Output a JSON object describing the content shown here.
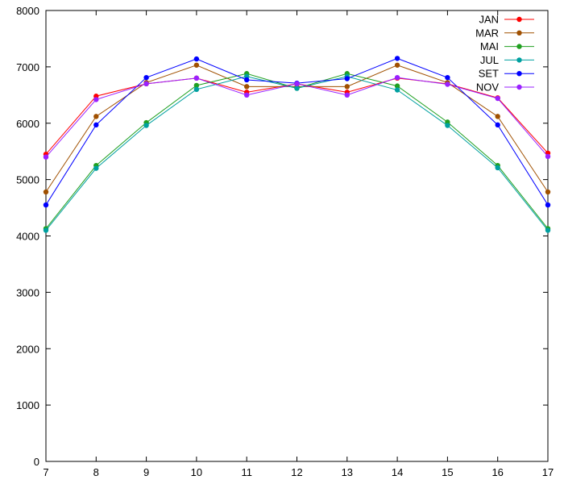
{
  "chart_data": {
    "type": "line",
    "title": "",
    "xlabel": "",
    "ylabel": "",
    "x": [
      7,
      8,
      9,
      10,
      11,
      12,
      13,
      14,
      15,
      16,
      17
    ],
    "xlim": [
      7,
      17
    ],
    "ylim": [
      0,
      8000
    ],
    "x_ticks": [
      7,
      8,
      9,
      10,
      11,
      12,
      13,
      14,
      15,
      16,
      17
    ],
    "y_ticks": [
      0,
      1000,
      2000,
      3000,
      4000,
      5000,
      6000,
      7000,
      8000
    ],
    "grid": false,
    "legend_position": "top-right",
    "series": [
      {
        "name": "JAN",
        "color": "#ff0000",
        "values": [
          5450,
          6480,
          6700,
          6800,
          6550,
          6700,
          6550,
          6800,
          6700,
          6450,
          5470
        ]
      },
      {
        "name": "MAR",
        "color": "#a05000",
        "values": [
          4780,
          6120,
          6720,
          7030,
          6650,
          6650,
          6650,
          7030,
          6720,
          6120,
          4780
        ]
      },
      {
        "name": "MAI",
        "color": "#20a020",
        "values": [
          4130,
          5250,
          6010,
          6670,
          6880,
          6620,
          6880,
          6660,
          6020,
          5250,
          4130
        ]
      },
      {
        "name": "JUL",
        "color": "#00a0a0",
        "values": [
          4100,
          5200,
          5960,
          6600,
          6830,
          6620,
          6830,
          6590,
          5960,
          5210,
          4100
        ]
      },
      {
        "name": "SET",
        "color": "#0000ff",
        "values": [
          4550,
          5970,
          6810,
          7140,
          6770,
          6710,
          6790,
          7150,
          6810,
          5970,
          4550
        ]
      },
      {
        "name": "NOV",
        "color": "#9a20ff",
        "values": [
          5400,
          6420,
          6700,
          6800,
          6500,
          6700,
          6500,
          6810,
          6690,
          6440,
          5410
        ]
      }
    ]
  }
}
